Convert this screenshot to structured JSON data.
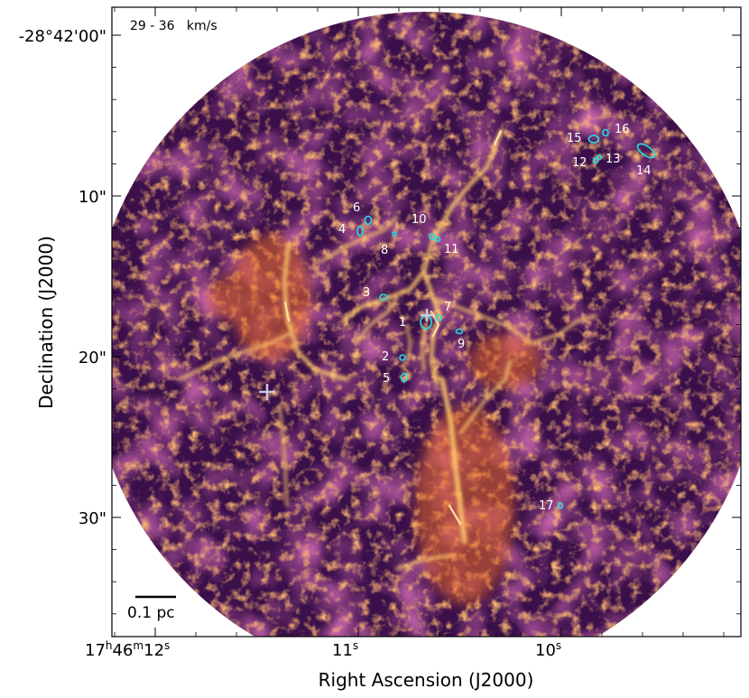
{
  "figure": {
    "velocity_range": "29 - 36   km/s",
    "scalebar_label": "0.1 pc",
    "xlabel": "Right Ascension (J2000)",
    "ylabel": "Declination (J2000)",
    "colors": {
      "background": "#ffffff",
      "field_dark": "#2a0a3a",
      "field_mid": "#8a2a6a",
      "field_bright": "#f08a2a",
      "filament": "#ffd27a",
      "contour": "#22e0e8",
      "marker": "#c8c8dc"
    }
  },
  "axes": {
    "y_ticks": [
      {
        "label": "-28°42'00\""
      },
      {
        "label": "10\""
      },
      {
        "label": "20\""
      },
      {
        "label": "30\""
      }
    ],
    "x_ticks": [
      {
        "label_main": "17",
        "sup1": "h",
        "mid": "46",
        "sup2": "m",
        "tail": "12",
        "sup3": "s"
      },
      {
        "label_main": "11",
        "sup3": "s"
      },
      {
        "label_main": "10",
        "sup3": "s"
      }
    ]
  },
  "sources": [
    {
      "id": "1"
    },
    {
      "id": "2"
    },
    {
      "id": "3"
    },
    {
      "id": "4"
    },
    {
      "id": "5"
    },
    {
      "id": "6"
    },
    {
      "id": "7"
    },
    {
      "id": "8"
    },
    {
      "id": "9"
    },
    {
      "id": "10"
    },
    {
      "id": "11"
    },
    {
      "id": "12"
    },
    {
      "id": "13"
    },
    {
      "id": "14"
    },
    {
      "id": "15"
    },
    {
      "id": "16"
    },
    {
      "id": "17"
    }
  ]
}
